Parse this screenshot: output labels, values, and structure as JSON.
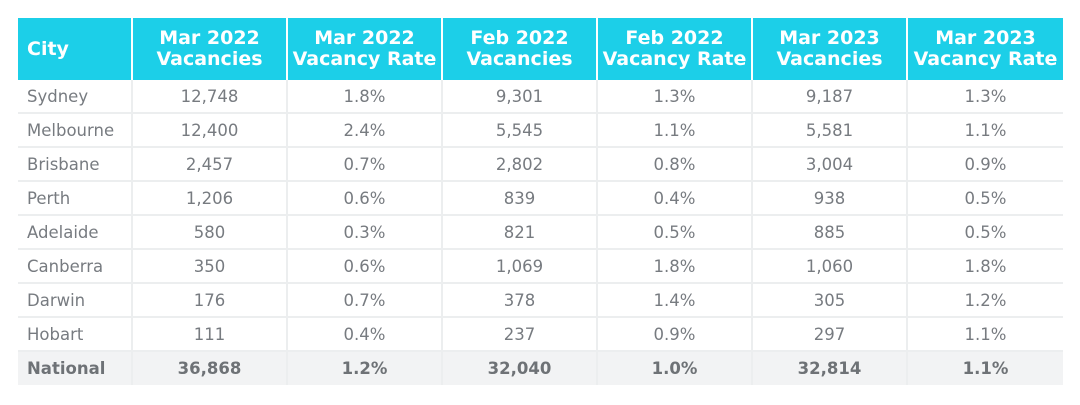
{
  "chart_data": {
    "type": "table",
    "headers": [
      [
        "City"
      ],
      [
        "Mar 2022",
        "Vacancies"
      ],
      [
        "Mar 2022",
        "Vacancy Rate"
      ],
      [
        "Feb 2022",
        "Vacancies"
      ],
      [
        "Feb 2022",
        "Vacancy Rate"
      ],
      [
        "Mar 2023",
        "Vacancies"
      ],
      [
        "Mar 2023",
        "Vacancy Rate"
      ]
    ],
    "rows": [
      [
        "Sydney",
        "12,748",
        "1.8%",
        "9,301",
        "1.3%",
        "9,187",
        "1.3%"
      ],
      [
        "Melbourne",
        "12,400",
        "2.4%",
        "5,545",
        "1.1%",
        "5,581",
        "1.1%"
      ],
      [
        "Brisbane",
        "2,457",
        "0.7%",
        "2,802",
        "0.8%",
        "3,004",
        "0.9%"
      ],
      [
        "Perth",
        "1,206",
        "0.6%",
        "839",
        "0.4%",
        "938",
        "0.5%"
      ],
      [
        "Adelaide",
        "580",
        "0.3%",
        "821",
        "0.5%",
        "885",
        "0.5%"
      ],
      [
        "Canberra",
        "350",
        "0.6%",
        "1,069",
        "1.8%",
        "1,060",
        "1.8%"
      ],
      [
        "Darwin",
        "176",
        "0.7%",
        "378",
        "1.4%",
        "305",
        "1.2%"
      ],
      [
        "Hobart",
        "111",
        "0.4%",
        "237",
        "0.9%",
        "297",
        "1.1%"
      ]
    ],
    "total_row": [
      "National",
      "36,868",
      "1.2%",
      "32,040",
      "1.0%",
      "32,814",
      "1.1%"
    ]
  },
  "colors": {
    "header_background": "#1ccfe8",
    "header_text": "#ffffff",
    "cell_text": "#777b80",
    "total_row_background": "#f2f3f4"
  }
}
